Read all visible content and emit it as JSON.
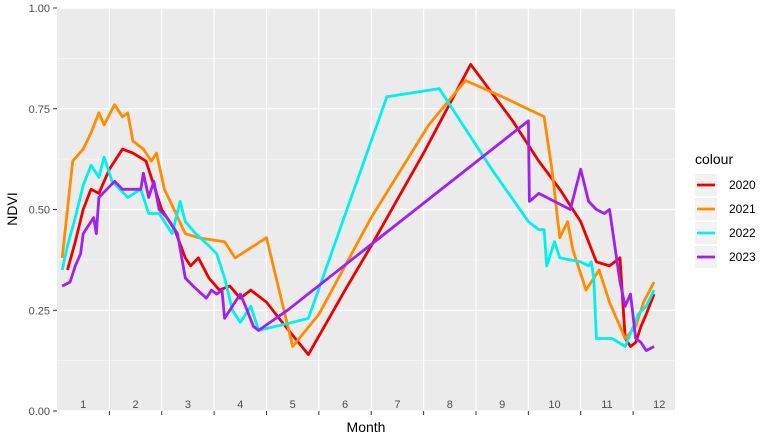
{
  "chart_data": {
    "type": "line",
    "xlabel": "Month",
    "ylabel": "NDVI",
    "ylim": [
      0,
      1
    ],
    "y_ticks": [
      "0.00",
      "0.25",
      "0.50",
      "0.75",
      "1.00"
    ],
    "x_ticks": [
      "1",
      "2",
      "3",
      "4",
      "5",
      "6",
      "7",
      "8",
      "9",
      "10",
      "11",
      "12"
    ],
    "grid": true,
    "legend_title": "colour",
    "legend_position": "right",
    "series": [
      {
        "name": "2020",
        "color": "#EE0000",
        "points": [
          [
            0.2,
            0.35
          ],
          [
            0.35,
            0.42
          ],
          [
            0.5,
            0.5
          ],
          [
            0.65,
            0.55
          ],
          [
            0.8,
            0.54
          ],
          [
            1.0,
            0.6
          ],
          [
            1.25,
            0.65
          ],
          [
            1.45,
            0.64
          ],
          [
            1.7,
            0.62
          ],
          [
            2.0,
            0.5
          ],
          [
            2.25,
            0.45
          ],
          [
            2.45,
            0.38
          ],
          [
            2.55,
            0.36
          ],
          [
            2.7,
            0.38
          ],
          [
            2.9,
            0.33
          ],
          [
            3.1,
            0.3
          ],
          [
            3.3,
            0.31
          ],
          [
            3.5,
            0.28
          ],
          [
            3.7,
            0.3
          ],
          [
            4.0,
            0.27
          ],
          [
            4.3,
            0.22
          ],
          [
            4.8,
            0.14
          ],
          [
            5.5,
            0.3
          ],
          [
            6.0,
            0.41
          ],
          [
            7.0,
            0.64
          ],
          [
            7.9,
            0.86
          ],
          [
            8.7,
            0.72
          ],
          [
            9.2,
            0.62
          ],
          [
            9.6,
            0.55
          ],
          [
            10.0,
            0.47
          ],
          [
            10.3,
            0.37
          ],
          [
            10.55,
            0.36
          ],
          [
            10.75,
            0.38
          ],
          [
            10.85,
            0.18
          ],
          [
            10.95,
            0.16
          ],
          [
            11.05,
            0.17
          ],
          [
            11.15,
            0.21
          ],
          [
            11.25,
            0.24
          ],
          [
            11.4,
            0.29
          ]
        ]
      },
      {
        "name": "2021",
        "color": "#FF8C00",
        "points": [
          [
            0.1,
            0.38
          ],
          [
            0.3,
            0.62
          ],
          [
            0.5,
            0.65
          ],
          [
            0.65,
            0.69
          ],
          [
            0.8,
            0.74
          ],
          [
            0.9,
            0.71
          ],
          [
            1.1,
            0.76
          ],
          [
            1.25,
            0.73
          ],
          [
            1.35,
            0.74
          ],
          [
            1.45,
            0.67
          ],
          [
            1.65,
            0.65
          ],
          [
            1.8,
            0.62
          ],
          [
            1.9,
            0.64
          ],
          [
            2.05,
            0.55
          ],
          [
            2.2,
            0.51
          ],
          [
            2.45,
            0.44
          ],
          [
            2.7,
            0.43
          ],
          [
            3.2,
            0.42
          ],
          [
            3.4,
            0.38
          ],
          [
            4.0,
            0.43
          ],
          [
            4.5,
            0.16
          ],
          [
            5.0,
            0.24
          ],
          [
            6.0,
            0.48
          ],
          [
            7.1,
            0.71
          ],
          [
            7.8,
            0.82
          ],
          [
            8.5,
            0.78
          ],
          [
            9.3,
            0.73
          ],
          [
            9.45,
            0.6
          ],
          [
            9.6,
            0.43
          ],
          [
            9.75,
            0.47
          ],
          [
            9.85,
            0.4
          ],
          [
            10.1,
            0.3
          ],
          [
            10.35,
            0.35
          ],
          [
            10.55,
            0.27
          ],
          [
            10.85,
            0.18
          ],
          [
            11.05,
            0.21
          ],
          [
            11.2,
            0.27
          ],
          [
            11.4,
            0.32
          ]
        ]
      },
      {
        "name": "2022",
        "color": "#00F0F0",
        "points": [
          [
            0.1,
            0.35
          ],
          [
            0.2,
            0.41
          ],
          [
            0.35,
            0.48
          ],
          [
            0.5,
            0.56
          ],
          [
            0.65,
            0.61
          ],
          [
            0.8,
            0.58
          ],
          [
            0.9,
            0.63
          ],
          [
            1.05,
            0.57
          ],
          [
            1.2,
            0.55
          ],
          [
            1.35,
            0.53
          ],
          [
            1.6,
            0.55
          ],
          [
            1.75,
            0.49
          ],
          [
            1.95,
            0.49
          ],
          [
            2.2,
            0.44
          ],
          [
            2.35,
            0.52
          ],
          [
            2.45,
            0.47
          ],
          [
            2.65,
            0.44
          ],
          [
            2.9,
            0.41
          ],
          [
            3.05,
            0.39
          ],
          [
            3.2,
            0.33
          ],
          [
            3.35,
            0.25
          ],
          [
            3.5,
            0.22
          ],
          [
            3.7,
            0.26
          ],
          [
            3.85,
            0.2
          ],
          [
            4.5,
            0.22
          ],
          [
            4.8,
            0.23
          ],
          [
            6.3,
            0.78
          ],
          [
            7.3,
            0.8
          ],
          [
            8.3,
            0.6
          ],
          [
            9.0,
            0.47
          ],
          [
            9.2,
            0.45
          ],
          [
            9.3,
            0.45
          ],
          [
            9.35,
            0.36
          ],
          [
            9.5,
            0.42
          ],
          [
            9.6,
            0.38
          ],
          [
            10.0,
            0.37
          ],
          [
            10.15,
            0.36
          ],
          [
            10.2,
            0.37
          ],
          [
            10.25,
            0.33
          ],
          [
            10.3,
            0.18
          ],
          [
            10.6,
            0.18
          ],
          [
            10.85,
            0.16
          ],
          [
            11.1,
            0.24
          ],
          [
            11.25,
            0.26
          ],
          [
            11.4,
            0.3
          ]
        ]
      },
      {
        "name": "2023",
        "color": "#A020F0",
        "points": [
          [
            0.1,
            0.31
          ],
          [
            0.25,
            0.32
          ],
          [
            0.35,
            0.36
          ],
          [
            0.45,
            0.39
          ],
          [
            0.5,
            0.44
          ],
          [
            0.6,
            0.46
          ],
          [
            0.7,
            0.48
          ],
          [
            0.75,
            0.44
          ],
          [
            0.8,
            0.53
          ],
          [
            0.95,
            0.55
          ],
          [
            1.1,
            0.57
          ],
          [
            1.25,
            0.55
          ],
          [
            1.6,
            0.55
          ],
          [
            1.65,
            0.59
          ],
          [
            1.75,
            0.53
          ],
          [
            1.85,
            0.57
          ],
          [
            1.95,
            0.5
          ],
          [
            2.1,
            0.48
          ],
          [
            2.3,
            0.44
          ],
          [
            2.45,
            0.33
          ],
          [
            2.6,
            0.31
          ],
          [
            2.85,
            0.28
          ],
          [
            2.95,
            0.3
          ],
          [
            3.05,
            0.29
          ],
          [
            3.15,
            0.3
          ],
          [
            3.2,
            0.23
          ],
          [
            3.35,
            0.26
          ],
          [
            3.5,
            0.29
          ],
          [
            3.6,
            0.26
          ],
          [
            3.75,
            0.21
          ],
          [
            3.85,
            0.2
          ],
          [
            4.4,
            0.25
          ],
          [
            9.0,
            0.72
          ],
          [
            9.02,
            0.52
          ],
          [
            9.2,
            0.54
          ],
          [
            9.8,
            0.5
          ],
          [
            10.0,
            0.6
          ],
          [
            10.15,
            0.52
          ],
          [
            10.3,
            0.5
          ],
          [
            10.45,
            0.49
          ],
          [
            10.55,
            0.5
          ],
          [
            10.65,
            0.41
          ],
          [
            10.75,
            0.32
          ],
          [
            10.85,
            0.26
          ],
          [
            10.95,
            0.29
          ],
          [
            11.05,
            0.18
          ],
          [
            11.15,
            0.17
          ],
          [
            11.25,
            0.15
          ],
          [
            11.4,
            0.16
          ]
        ]
      }
    ]
  }
}
